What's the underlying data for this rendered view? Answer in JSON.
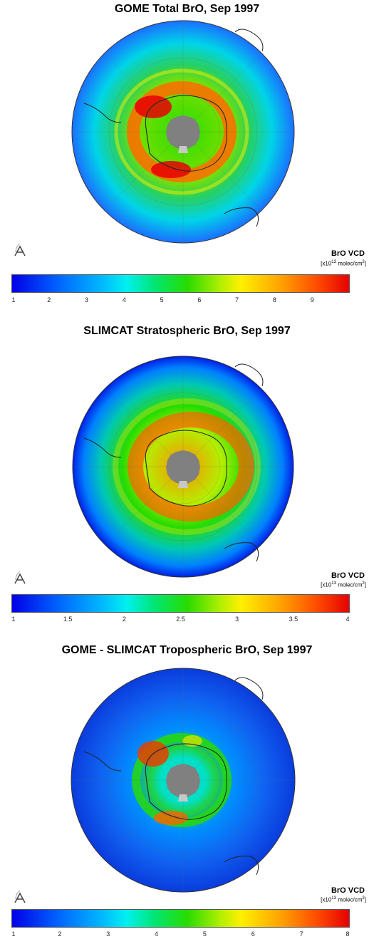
{
  "panels": [
    {
      "title": "GOME Total BrO, Sep 1997",
      "colorbar": {
        "title": "BrO VCD",
        "unit_base": "[x10",
        "unit_exp": "13",
        "unit_rest": " molec/cm",
        "unit_sq": "2",
        "unit_end": "]",
        "min": 1,
        "max": 10,
        "ticks": [
          "1",
          "2",
          "3",
          "4",
          "5",
          "6",
          "7",
          "8",
          "9"
        ],
        "tick_values": [
          1,
          2,
          3,
          4,
          5,
          6,
          7,
          8,
          9
        ]
      }
    },
    {
      "title": "SLIMCAT Stratospheric BrO, Sep 1997",
      "colorbar": {
        "title": "BrO VCD",
        "unit_base": "[x10",
        "unit_exp": "13",
        "unit_rest": " molec/cm",
        "unit_sq": "2",
        "unit_end": "]",
        "min": 1,
        "max": 4,
        "ticks": [
          "1",
          "1.5",
          "2",
          "2.5",
          "3",
          "3.5",
          "4"
        ],
        "tick_values": [
          1,
          1.5,
          2,
          2.5,
          3,
          3.5,
          4
        ]
      }
    },
    {
      "title": "GOME - SLIMCAT Tropospheric BrO, Sep 1997",
      "colorbar": {
        "title": "BrO VCD",
        "unit_base": "[x10",
        "unit_exp": "13",
        "unit_rest": " molec/cm",
        "unit_sq": "2",
        "unit_end": "]",
        "min": 1,
        "max": 8,
        "ticks": [
          "1",
          "2",
          "3",
          "4",
          "5",
          "6",
          "7",
          "8"
        ],
        "tick_values": [
          1,
          2,
          3,
          4,
          5,
          6,
          7,
          8
        ]
      }
    }
  ],
  "colors": {
    "pole_mask": "#808080",
    "low": "#0000e6",
    "mid": "#28dc00",
    "high": "#e60000"
  }
}
